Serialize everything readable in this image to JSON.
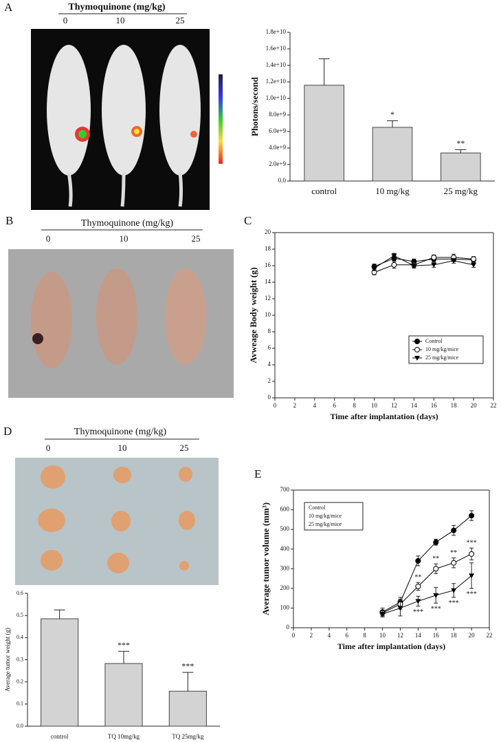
{
  "panel_labels": [
    "A",
    "B",
    "C",
    "D",
    "E"
  ],
  "photo_headers": [
    {
      "title": "Thymoquinone (mg/kg)",
      "doses": [
        "0",
        "10",
        "25"
      ]
    },
    {
      "title": "Thymoquinone (mg/kg)",
      "doses": [
        "0",
        "10",
        "25"
      ]
    },
    {
      "title": "Thymoquinone (mg/kg)",
      "doses": [
        "0",
        "10",
        "25"
      ]
    }
  ],
  "chart_data": [
    {
      "type": "bar",
      "ylabel": "Photons/second",
      "categories": [
        "control",
        "10 mg/kg",
        "25 mg/kg"
      ],
      "values": [
        11600000000,
        6500000000,
        3400000000
      ],
      "errors": [
        3200000000,
        800000000,
        400000000
      ],
      "annotations": [
        {
          "index": 1,
          "text": "*"
        },
        {
          "index": 2,
          "text": "**"
        }
      ],
      "color": "#d3d3d3",
      "ylim": [
        0,
        18000000000
      ],
      "yticks": [
        {
          "value": 0,
          "label": "0.0"
        },
        {
          "value": 2000000000,
          "label": "2.0e+9"
        },
        {
          "value": 4000000000,
          "label": "4.0e+9"
        },
        {
          "value": 6000000000,
          "label": "6.0e+9"
        },
        {
          "value": 8000000000,
          "label": "8.0e+9"
        },
        {
          "value": 10000000000,
          "label": "1.0e+10"
        },
        {
          "value": 12000000000,
          "label": "1.2e+10"
        },
        {
          "value": 14000000000,
          "label": "1.4e+10"
        },
        {
          "value": 16000000000,
          "label": "1.6e+10"
        },
        {
          "value": 18000000000,
          "label": "1.8e+10"
        }
      ]
    },
    {
      "type": "line",
      "xlabel": "Time after implantation (days)",
      "ylabel": "Avweage Body weight (g)",
      "x": [
        10,
        12,
        14,
        16,
        18,
        20
      ],
      "series": [
        {
          "name": "Control",
          "color": "#000000",
          "marker": "circle-filled",
          "values": [
            15.9,
            16.9,
            16.5,
            16.8,
            16.8,
            16.7
          ],
          "errors": [
            0.3,
            0.3,
            0.3,
            0.3,
            0.3,
            0.3
          ]
        },
        {
          "name": "10 mg/kg/mice",
          "color": "#000000",
          "marker": "circle-open",
          "values": [
            15.2,
            16.1,
            16.1,
            17.0,
            17.0,
            16.8
          ],
          "errors": [
            0.3,
            0.4,
            0.3,
            0.3,
            0.4,
            0.3
          ]
        },
        {
          "name": "25 mg/kg/mice",
          "color": "#000000",
          "marker": "triangle-down",
          "values": [
            15.7,
            17.2,
            16.0,
            16.1,
            16.6,
            16.1
          ],
          "errors": [
            0.3,
            0.3,
            0.3,
            0.3,
            0.3,
            0.3
          ]
        }
      ],
      "xlim": [
        0,
        22
      ],
      "xticks": [
        0,
        2,
        4,
        6,
        8,
        10,
        12,
        14,
        16,
        18,
        20,
        22
      ],
      "ylim": [
        0,
        20
      ],
      "yticks": [
        0,
        2,
        4,
        6,
        8,
        10,
        12,
        14,
        16,
        18,
        20
      ],
      "legend": "lower right",
      "legend_markers": true
    },
    {
      "type": "bar",
      "ylabel": "Average tumor weight (g)",
      "categories": [
        "control",
        "TQ 10mg/kg",
        "TQ 25mg/kg"
      ],
      "values": [
        0.485,
        0.283,
        0.158
      ],
      "errors": [
        0.04,
        0.055,
        0.085
      ],
      "annotations": [
        {
          "index": 1,
          "text": "***"
        },
        {
          "index": 2,
          "text": "***"
        }
      ],
      "color": "#d3d3d3",
      "ylim": [
        0,
        0.6
      ],
      "yticks": [
        {
          "value": 0,
          "label": "0.0"
        },
        0.1,
        0.2,
        0.3,
        0.4,
        0.5,
        0.6
      ]
    },
    {
      "type": "line",
      "xlabel": "Time after implantation (days)",
      "ylabel": "Average tumor volume (mm³)",
      "x": [
        10,
        12,
        14,
        16,
        18,
        20
      ],
      "series": [
        {
          "name": "Control",
          "color": "#000000",
          "marker": "circle-filled",
          "values": [
            80,
            130,
            340,
            435,
            495,
            570
          ],
          "errors": [
            20,
            25,
            25,
            15,
            25,
            25
          ]
        },
        {
          "name": "10 mg/kg/mice",
          "color": "#000000",
          "marker": "circle-open",
          "values": [
            75,
            120,
            210,
            300,
            330,
            375
          ],
          "errors": [
            15,
            25,
            20,
            25,
            25,
            30
          ],
          "annotations": [
            {
              "x": 14,
              "text": "**"
            },
            {
              "x": 16,
              "text": "**"
            },
            {
              "x": 18,
              "text": "**"
            },
            {
              "x": 20,
              "text": "***"
            }
          ]
        },
        {
          "name": "25 mg/kg/mice",
          "color": "#000000",
          "marker": "triangle-down",
          "values": [
            70,
            100,
            135,
            165,
            190,
            265
          ],
          "errors": [
            15,
            40,
            25,
            40,
            35,
            65
          ],
          "annotations": [
            {
              "x": 14,
              "text": "***"
            },
            {
              "x": 16,
              "text": "***"
            },
            {
              "x": 18,
              "text": "***"
            },
            {
              "x": 20,
              "text": "***"
            }
          ]
        }
      ],
      "xlim": [
        0,
        22
      ],
      "xticks": [
        0,
        2,
        4,
        6,
        8,
        10,
        12,
        14,
        16,
        18,
        20,
        22
      ],
      "ylim": [
        0,
        700
      ],
      "yticks": [
        0,
        100,
        200,
        300,
        400,
        500,
        600,
        700
      ],
      "legend": "upper left",
      "legend_markers": false
    }
  ]
}
